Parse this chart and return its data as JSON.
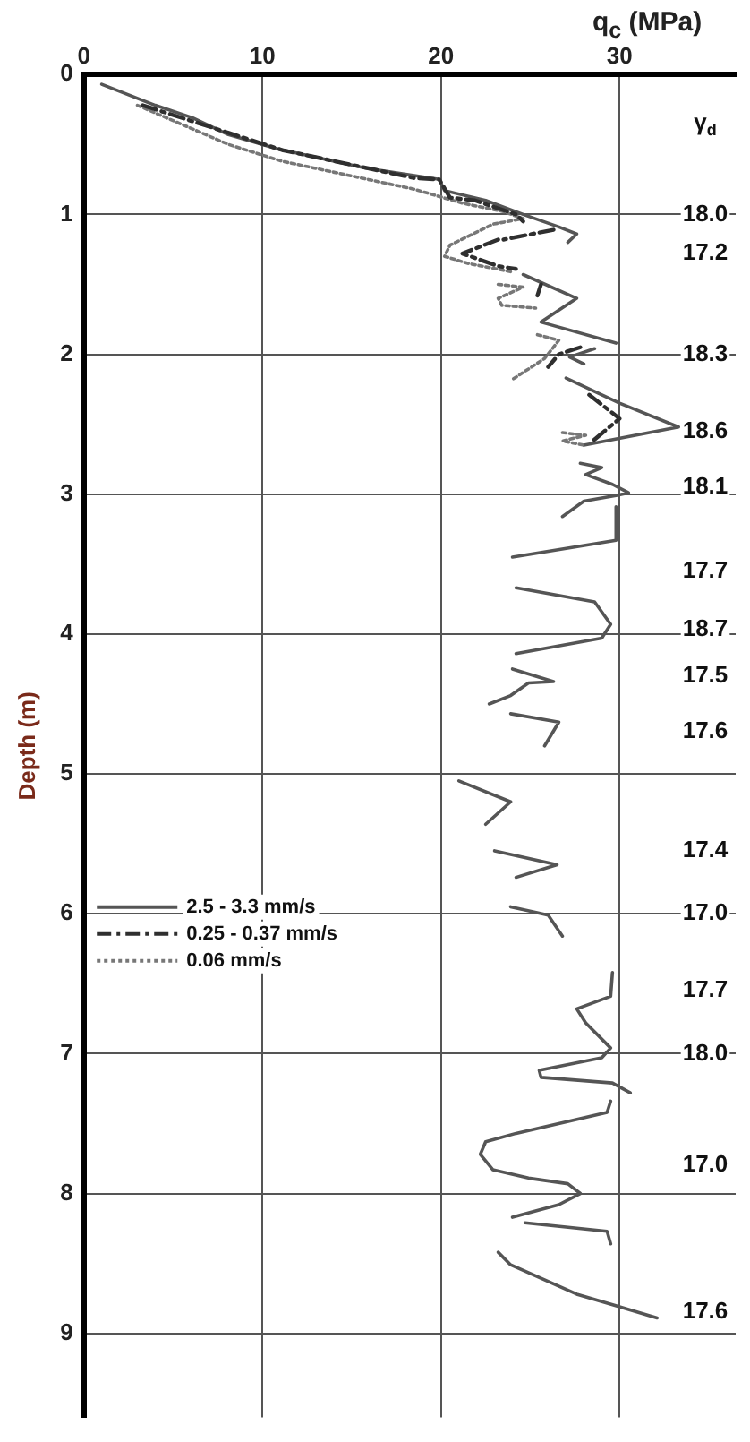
{
  "chart_data": {
    "type": "line",
    "xlabel": "q$_{c}$ (MPa)",
    "ylabel": "Depth (m)",
    "xlim": [
      0,
      36.5
    ],
    "xticks": [
      0,
      10,
      20,
      30
    ],
    "ylim": [
      9.6,
      0
    ],
    "yticks": [
      0,
      1,
      2,
      3,
      4,
      5,
      6,
      7,
      8,
      9
    ],
    "annotations": [
      {
        "text": "γ$_{d}$",
        "y": 0.35
      },
      {
        "text": "18.0",
        "y": 1.0
      },
      {
        "text": "17.2",
        "y": 1.28
      },
      {
        "text": "18.3",
        "y": 2.0
      },
      {
        "text": "18.6",
        "y": 2.55
      },
      {
        "text": "18.1",
        "y": 2.95
      },
      {
        "text": "17.7",
        "y": 3.55
      },
      {
        "text": "18.7",
        "y": 3.97
      },
      {
        "text": "17.5",
        "y": 4.3
      },
      {
        "text": "17.6",
        "y": 4.7
      },
      {
        "text": "17.4",
        "y": 5.55
      },
      {
        "text": "17.0",
        "y": 6.0
      },
      {
        "text": "17.7",
        "y": 6.55
      },
      {
        "text": "18.0",
        "y": 7.0
      },
      {
        "text": "17.0",
        "y": 7.8
      },
      {
        "text": "17.6",
        "y": 8.85
      }
    ],
    "grid": true,
    "legend": "left",
    "series": [
      {
        "name": "2.5 - 3.3 mm/s",
        "color": "#555555",
        "line_style": "solid",
        "x": [
          1.0,
          4.0,
          6.1,
          8.1,
          10.8,
          15.8,
          19.9,
          20.2,
          22.5,
          24.6,
          26.6,
          27.6,
          27.1,
          null,
          24.6,
          27.6,
          25.6,
          29.8,
          null,
          28.6,
          27.2,
          28.0,
          null,
          27.0,
          30.0,
          33.3,
          28.0,
          null,
          27.8,
          29.0,
          28.1,
          29.6,
          30.5,
          29.8,
          28.0,
          26.8,
          null,
          29.8,
          29.8,
          24.0,
          null,
          24.2,
          28.6,
          29.5,
          29.0,
          24.2,
          null,
          24.0,
          26.3,
          24.9,
          23.9,
          22.7,
          null,
          23.9,
          26.6,
          25.8,
          null,
          21.0,
          23.9,
          22.5,
          null,
          23.0,
          26.5,
          24.2,
          null,
          23.9,
          26.0,
          26.8,
          null,
          29.6,
          29.5,
          27.6,
          28.1,
          29.5,
          29.0,
          25.5,
          25.6,
          29.6,
          30.6,
          null,
          29.5,
          29.3,
          24.2,
          22.5,
          22.2,
          22.9,
          24.9,
          27.1,
          27.8,
          26.6,
          24.0,
          null,
          24.7,
          29.3,
          29.5,
          null,
          23.2,
          23.9,
          27.6,
          30.0,
          32.1
        ],
        "values": [
          0.07,
          0.22,
          0.31,
          0.43,
          0.53,
          0.67,
          0.75,
          0.83,
          0.9,
          1.0,
          1.09,
          1.14,
          1.2,
          null,
          1.43,
          1.6,
          1.77,
          1.92,
          null,
          1.96,
          2.02,
          2.07,
          null,
          2.17,
          2.35,
          2.52,
          2.65,
          null,
          2.78,
          2.81,
          2.86,
          2.93,
          2.99,
          3.01,
          3.05,
          3.16,
          null,
          3.09,
          3.33,
          3.45,
          null,
          3.67,
          3.77,
          3.93,
          4.03,
          4.14,
          null,
          4.25,
          4.34,
          4.35,
          4.44,
          4.5,
          null,
          4.57,
          4.63,
          4.8,
          null,
          5.05,
          5.2,
          5.36,
          null,
          5.55,
          5.65,
          5.74,
          null,
          5.95,
          6.01,
          6.16,
          null,
          6.42,
          6.59,
          6.68,
          6.78,
          6.96,
          7.03,
          7.12,
          7.17,
          7.21,
          7.28,
          null,
          7.34,
          7.42,
          7.57,
          7.63,
          7.72,
          7.83,
          7.89,
          7.93,
          8.0,
          8.08,
          8.17,
          null,
          8.21,
          8.27,
          8.36,
          null,
          8.42,
          8.51,
          8.72,
          8.81,
          8.89
        ]
      },
      {
        "name": "0.25 - 0.37 mm/s",
        "color": "#2f2f2f",
        "line_style": "dashed",
        "x": [
          3.3,
          11.1,
          18.5,
          19.9,
          20.5,
          21.9,
          24.2,
          24.6,
          null,
          26.3,
          23.5,
          null,
          23.2,
          21.2,
          23.2,
          24.2,
          null,
          25.6,
          25.4,
          null,
          27.8,
          26.6,
          26.0,
          null,
          28.3,
          30.0,
          28.5
        ],
        "values": [
          0.22,
          0.54,
          0.74,
          0.75,
          0.88,
          0.9,
          1.0,
          1.05,
          null,
          1.11,
          1.18,
          null,
          1.18,
          1.28,
          1.37,
          1.39,
          null,
          1.5,
          1.58,
          null,
          1.95,
          2.0,
          2.09,
          null,
          2.29,
          2.46,
          2.62
        ]
      },
      {
        "name": "0.06 mm/s",
        "color": "#777777",
        "line_style": "dotted",
        "x": [
          3.0,
          8.1,
          11.1,
          18.5,
          21.2,
          23.5,
          24.6,
          22.9,
          20.5,
          20.2,
          21.5,
          23.9,
          null,
          23.2,
          24.6,
          23.2,
          23.4,
          25.3,
          null,
          25.4,
          26.6,
          25.8,
          24.0,
          null,
          26.8,
          28.1,
          26.8,
          28.0
        ],
        "values": [
          0.22,
          0.5,
          0.62,
          0.82,
          0.92,
          0.98,
          1.03,
          1.07,
          1.22,
          1.3,
          1.35,
          1.41,
          null,
          1.5,
          1.52,
          1.6,
          1.65,
          1.67,
          null,
          1.86,
          1.9,
          2.03,
          2.18,
          null,
          2.56,
          2.58,
          2.62,
          2.65
        ]
      }
    ]
  }
}
